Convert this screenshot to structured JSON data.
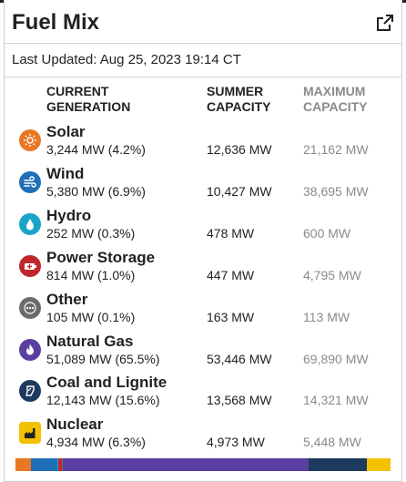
{
  "header": {
    "title": "Fuel Mix"
  },
  "last_updated": "Last Updated: Aug 25, 2023 19:14 CT",
  "columns": {
    "current_line1": "CURRENT",
    "current_line2": "GENERATION",
    "summer_line1": "SUMMER",
    "summer_line2": "CAPACITY",
    "max_line1": "MAXIMUM",
    "max_line2": "CAPACITY"
  },
  "rows": [
    {
      "name": "Solar",
      "current": "3,244 MW (4.2%)",
      "summer": "12,636 MW",
      "max": "21,162 MW",
      "icon": "sun-icon",
      "color": "#e87722"
    },
    {
      "name": "Wind",
      "current": "5,380 MW (6.9%)",
      "summer": "10,427 MW",
      "max": "38,695 MW",
      "icon": "wind-icon",
      "color": "#1f6fb8"
    },
    {
      "name": "Hydro",
      "current": "252 MW (0.3%)",
      "summer": "478 MW",
      "max": "600 MW",
      "icon": "water-drop-icon",
      "color": "#1aa3c8"
    },
    {
      "name": "Power Storage",
      "current": "814 MW (1.0%)",
      "summer": "447 MW",
      "max": "4,795 MW",
      "icon": "battery-icon",
      "color": "#c0272d"
    },
    {
      "name": "Other",
      "current": "105 MW (0.1%)",
      "summer": "163 MW",
      "max": "113 MW",
      "icon": "ellipsis-icon",
      "color": "#6b6b6b"
    },
    {
      "name": "Natural Gas",
      "current": "51,089 MW (65.5%)",
      "summer": "53,446 MW",
      "max": "69,890 MW",
      "icon": "flame-icon",
      "color": "#5b3fa0"
    },
    {
      "name": "Coal and Lignite",
      "current": "12,143 MW (15.6%)",
      "summer": "13,568 MW",
      "max": "14,321 MW",
      "icon": "coal-icon",
      "color": "#1d3a5f"
    },
    {
      "name": "Nuclear",
      "current": "4,934 MW (6.3%)",
      "summer": "4,973 MW",
      "max": "5,448 MW",
      "icon": "nuclear-plant-icon",
      "color": "#f2c200"
    }
  ],
  "mix_bar": [
    {
      "name": "Solar",
      "share": 4.2,
      "color": "#e87722"
    },
    {
      "name": "Wind",
      "share": 6.9,
      "color": "#1f6fb8"
    },
    {
      "name": "Hydro",
      "share": 0.3,
      "color": "#1aa3c8"
    },
    {
      "name": "Power Storage",
      "share": 1.0,
      "color": "#c0272d"
    },
    {
      "name": "Other",
      "share": 0.1,
      "color": "#6b6b6b"
    },
    {
      "name": "Natural Gas",
      "share": 65.5,
      "color": "#5b3fa0"
    },
    {
      "name": "Coal and Lignite",
      "share": 15.6,
      "color": "#1d3a5f"
    },
    {
      "name": "Nuclear",
      "share": 6.3,
      "color": "#f2c200"
    }
  ]
}
